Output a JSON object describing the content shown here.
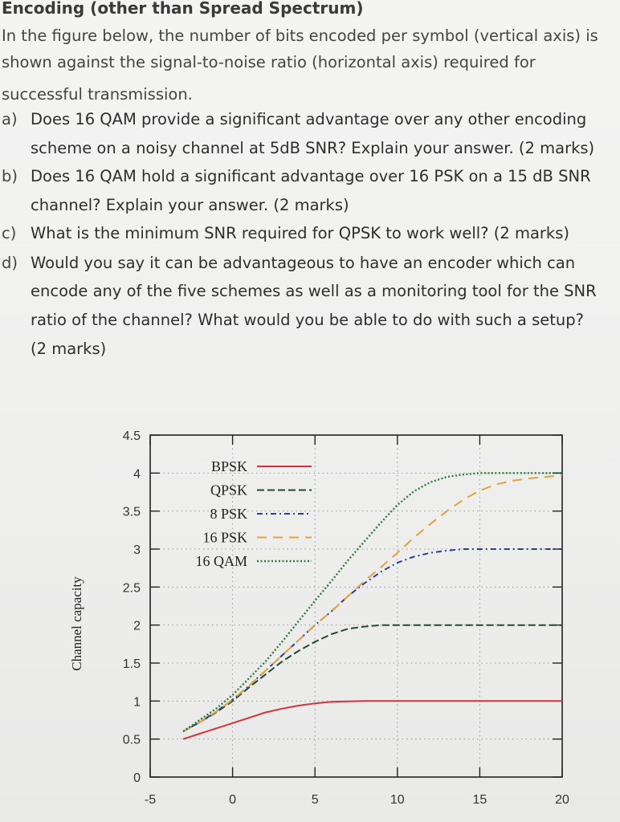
{
  "heading": "Encoding (other than Spread Spectrum)",
  "intro": [
    "In the figure below, the number of bits encoded per symbol (vertical axis) is",
    "shown against the signal-to-noise ratio (horizontal axis) required for",
    "successful transmission."
  ],
  "questions": [
    {
      "marker": "a)",
      "lines": [
        "Does 16 QAM provide a significant advantage over any other encoding",
        "scheme on a noisy channel at 5dB SNR? Explain your answer. (2 marks)"
      ]
    },
    {
      "marker": "b)",
      "lines": [
        "Does 16 QAM hold a significant advantage over 16 PSK on a 15 dB SNR",
        "channel? Explain your answer. (2 marks)"
      ]
    },
    {
      "marker": "c)",
      "lines": [
        "What is the minimum SNR required for QPSK to work well? (2 marks)"
      ]
    },
    {
      "marker": "d)",
      "lines": [
        "Would you say it can be advantageous to have an encoder which can",
        "encode any of the five schemes as well as a monitoring tool for the SNR",
        "ratio of the channel? What would you be able to do with such a setup?",
        "(2 marks)"
      ]
    }
  ],
  "chart_data": {
    "type": "line",
    "ylabel": "Channel capacity",
    "xlim": [
      -5,
      20
    ],
    "ylim": [
      0,
      4.5
    ],
    "x_ticks": [
      "-5",
      "0",
      "5",
      "10",
      "15",
      "20"
    ],
    "y_ticks": [
      "0",
      "0.5",
      "1",
      "1.5",
      "2",
      "2.5",
      "3",
      "3.5",
      "4",
      "4.5"
    ],
    "grid": true,
    "legend_position": "top-left",
    "series": [
      {
        "name": "BPSK",
        "color": "#d9303a",
        "dash": "solid",
        "x": [
          -3,
          -2,
          -1,
          0,
          1,
          2,
          3,
          4,
          5,
          6,
          8,
          10,
          12,
          15,
          20
        ],
        "y": [
          0.5,
          0.57,
          0.64,
          0.71,
          0.78,
          0.85,
          0.9,
          0.94,
          0.97,
          0.99,
          1.0,
          1.0,
          1.0,
          1.0,
          1.0
        ]
      },
      {
        "name": "QPSK",
        "color": "#1f4d2c",
        "dash": "longdash",
        "x": [
          -3,
          -2,
          -1,
          0,
          1,
          2,
          3,
          4,
          5,
          6,
          7,
          8,
          9,
          10,
          12,
          15,
          20
        ],
        "y": [
          0.6,
          0.72,
          0.85,
          1.0,
          1.18,
          1.35,
          1.52,
          1.66,
          1.78,
          1.88,
          1.95,
          1.98,
          2.0,
          2.0,
          2.0,
          2.0,
          2.0
        ]
      },
      {
        "name": "8 PSK",
        "color": "#2a3f9e",
        "dash": "dashdot",
        "x": [
          -3,
          -2,
          -1,
          0,
          1,
          2,
          3,
          4,
          5,
          6,
          7,
          8,
          9,
          10,
          11,
          12,
          13,
          14,
          15,
          17,
          20
        ],
        "y": [
          0.6,
          0.72,
          0.86,
          1.02,
          1.2,
          1.4,
          1.6,
          1.8,
          2.0,
          2.18,
          2.38,
          2.55,
          2.7,
          2.82,
          2.9,
          2.95,
          2.98,
          3.0,
          3.0,
          3.0,
          3.0
        ]
      },
      {
        "name": "16 PSK",
        "color": "#e3a23a",
        "dash": "dash",
        "x": [
          -3,
          -2,
          -1,
          0,
          1,
          2,
          3,
          4,
          5,
          6,
          7,
          8,
          9,
          10,
          11,
          12,
          13,
          14,
          15,
          16,
          17,
          18,
          19,
          20
        ],
        "y": [
          0.6,
          0.72,
          0.86,
          1.02,
          1.2,
          1.4,
          1.6,
          1.8,
          2.0,
          2.18,
          2.38,
          2.58,
          2.76,
          2.95,
          3.15,
          3.33,
          3.5,
          3.65,
          3.77,
          3.85,
          3.9,
          3.93,
          3.95,
          3.97
        ]
      },
      {
        "name": "16 QAM",
        "color": "#2e7a3a",
        "dash": "dotted",
        "x": [
          -3,
          -2,
          -1,
          0,
          1,
          2,
          3,
          4,
          5,
          6,
          7,
          8,
          9,
          10,
          11,
          12,
          13,
          14,
          15,
          16,
          17,
          18,
          19,
          20
        ],
        "y": [
          0.6,
          0.75,
          0.9,
          1.08,
          1.3,
          1.52,
          1.78,
          2.05,
          2.32,
          2.58,
          2.85,
          3.1,
          3.35,
          3.58,
          3.76,
          3.88,
          3.95,
          3.98,
          4.0,
          4.0,
          4.0,
          4.0,
          4.0,
          4.0
        ]
      }
    ]
  }
}
